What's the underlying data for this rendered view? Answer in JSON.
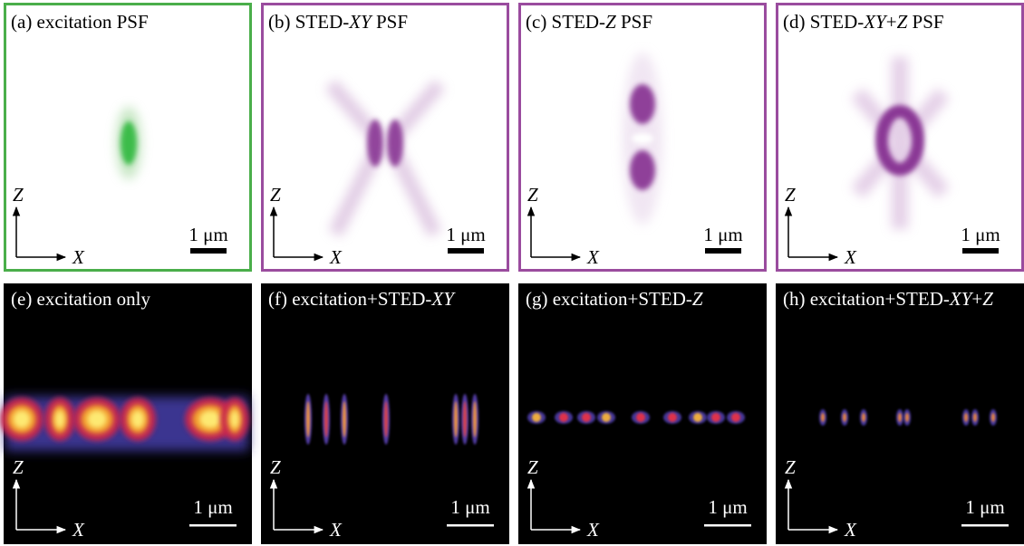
{
  "panels": [
    {
      "label_parts": [
        "(a) excitation PSF"
      ],
      "z_label": "Z",
      "x_label": "X",
      "scale_label": "1 μm"
    },
    {
      "label_parts": [
        "(b) STED-",
        "XY",
        " PSF"
      ],
      "z_label": "Z",
      "x_label": "X",
      "scale_label": "1 μm"
    },
    {
      "label_parts": [
        "(c) STED-",
        "Z",
        " PSF"
      ],
      "z_label": "Z",
      "x_label": "X",
      "scale_label": "1 μm"
    },
    {
      "label_parts": [
        "(d) STED-",
        "XY",
        "+",
        "Z",
        " PSF"
      ],
      "z_label": "Z",
      "x_label": "X",
      "scale_label": "1 μm"
    },
    {
      "label_parts": [
        "(e) excitation only"
      ],
      "z_label": "Z",
      "x_label": "X",
      "scale_label": "1 μm"
    },
    {
      "label_parts": [
        "(f) excitation+STED-",
        "XY"
      ],
      "z_label": "Z",
      "x_label": "X",
      "scale_label": "1 μm"
    },
    {
      "label_parts": [
        "(g) excitation+STED-",
        "Z"
      ],
      "z_label": "Z",
      "x_label": "X",
      "scale_label": "1 μm"
    },
    {
      "label_parts": [
        "(h) excitation+STED-",
        "XY",
        "+",
        "Z"
      ],
      "z_label": "Z",
      "x_label": "X",
      "scale_label": "1 μm"
    }
  ]
}
